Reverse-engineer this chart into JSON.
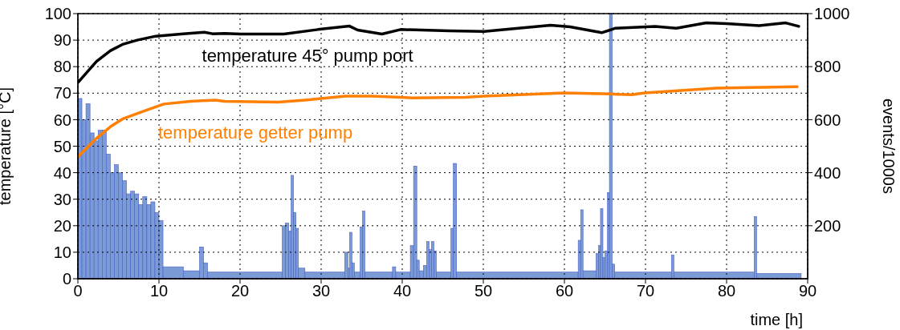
{
  "chart_data": {
    "type": "line",
    "xlabel": "time [h]",
    "ylabel": "temperature [°C]",
    "y2label": "events/1000s",
    "xlim": [
      0,
      90
    ],
    "xticks": [
      0,
      10,
      20,
      30,
      40,
      50,
      60,
      70,
      80,
      90
    ],
    "ylim": [
      0,
      100
    ],
    "yticks": [
      0,
      10,
      20,
      30,
      40,
      50,
      60,
      70,
      80,
      90,
      100
    ],
    "y2lim": [
      0,
      1000
    ],
    "y2ticks": [
      200,
      400,
      600,
      800,
      1000
    ],
    "grid": true,
    "series": [
      {
        "type": "histogram",
        "axis": "y2",
        "color": "#7a9bd6",
        "bins": [
          0,
          0.5,
          1,
          1.5,
          2,
          2.5,
          3,
          3.5,
          4,
          4.5,
          5,
          5.5,
          6,
          6.5,
          7,
          7.5,
          8,
          8.5,
          9,
          9.5,
          10,
          10.5,
          13,
          15,
          15.5,
          16,
          25.2,
          25.6,
          26.0,
          26.3,
          26.6,
          26.9,
          27.2,
          28,
          32.9,
          33.3,
          33.5,
          33.8,
          34.1,
          34.8,
          35.1,
          35.4,
          38.8,
          39.2,
          41.0,
          41.4,
          41.8,
          42.1,
          42.6,
          43.0,
          43.3,
          43.6,
          43.9,
          44.2,
          46.0,
          46.3,
          46.7,
          61.7,
          62.0,
          62.3,
          63.9,
          64.2,
          64.45,
          64.75,
          65.0,
          65.3,
          65.55,
          65.9,
          66.2,
          73.2,
          73.5,
          83.4,
          83.7,
          89.2
        ],
        "values": [
          680,
          600,
          660,
          550,
          520,
          560,
          560,
          470,
          400,
          430,
          400,
          370,
          320,
          330,
          320,
          280,
          310,
          280,
          290,
          250,
          220,
          45,
          30,
          120,
          60,
          25,
          200,
          210,
          180,
          390,
          250,
          190,
          40,
          25,
          100,
          40,
          175,
          60,
          25,
          195,
          255,
          25,
          45,
          25,
          125,
          425,
          70,
          30,
          50,
          140,
          110,
          140,
          105,
          25,
          190,
          435,
          25,
          145,
          260,
          30,
          95,
          125,
          265,
          80,
          105,
          325,
          1000,
          55,
          25,
          90,
          25,
          235,
          20
        ]
      },
      {
        "name": "temperature 45° pump port",
        "color": "#000000",
        "x": [
          0,
          2.3,
          4,
          5.6,
          7.3,
          9.6,
          13,
          15.6,
          16.6,
          18.1,
          20.1,
          25.4,
          29.6,
          33.5,
          34.5,
          37.5,
          39.8,
          45.8,
          50.1,
          58.3,
          60.7,
          64.6,
          66.3,
          71.2,
          73.8,
          77.5,
          80,
          84,
          87.3,
          88.9
        ],
        "values": [
          74,
          82,
          86,
          88.5,
          90,
          91.5,
          92.4,
          93,
          92.4,
          92.5,
          92.3,
          92.3,
          94,
          95.3,
          93.8,
          92.3,
          94,
          93.5,
          93.3,
          95.6,
          95,
          92.8,
          94.5,
          95.2,
          94.5,
          96.5,
          96.2,
          95.5,
          96.5,
          95.2
        ]
      },
      {
        "name": "temperature getter pump",
        "color": "#ff8000",
        "x": [
          0,
          2.3,
          4,
          5.6,
          8.3,
          10.6,
          13.9,
          16.9,
          18.1,
          24.7,
          28,
          33,
          36.3,
          41.2,
          47.8,
          50.1,
          60,
          65.6,
          68.3,
          69.9,
          78.8,
          88.7
        ],
        "values": [
          46,
          53,
          57.3,
          60.4,
          63.4,
          65.9,
          66.9,
          67.4,
          66.9,
          66.6,
          67.4,
          68.9,
          68.9,
          68.2,
          68.4,
          68.9,
          70.1,
          69.7,
          69.4,
          70.1,
          71.9,
          72.4
        ]
      }
    ]
  }
}
